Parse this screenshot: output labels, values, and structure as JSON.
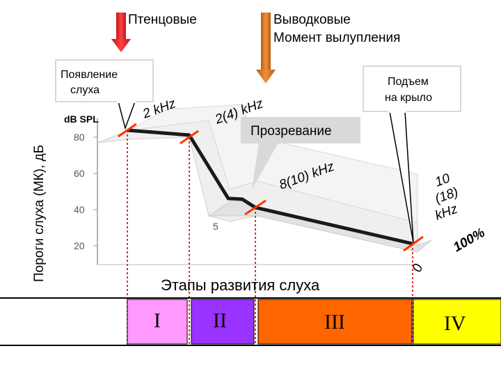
{
  "top_labels": {
    "altricial": "Птенцовые",
    "precocial_line1": "Выводковые",
    "precocial_line2": "Момент вылупления"
  },
  "y_axis_title": "Пороги слуха (МК), дБ",
  "y_axis_unit": "dB SPL",
  "y_ticks": [
    "80",
    "60",
    "40",
    "20"
  ],
  "x_tick_5": "5",
  "x_tick_0": "0",
  "x_end_label": "100%",
  "callouts": {
    "hearing_onset_line1": "Появление",
    "hearing_onset_line2": "слуха",
    "fledging_line1": "Подъем",
    "fledging_line2": "на крыло",
    "eye_opening": "Прозревание"
  },
  "frequency_labels": {
    "f1": "2 kHz",
    "f2": "2(4) kHz",
    "f3": "8(10) kHz",
    "f4_line1": "10",
    "f4_line2": "(18)",
    "f4_line3": "kHz"
  },
  "stages_title": "Этапы развития слуха",
  "stages": [
    {
      "label": "I",
      "color": "#ff99ff"
    },
    {
      "label": "II",
      "color": "#9933ff"
    },
    {
      "label": "III",
      "color": "#ff6600"
    },
    {
      "label": "IV",
      "color": "#ffff00"
    }
  ],
  "colors": {
    "threshold_line": "#1a1a1a",
    "markers": "#ff3300",
    "dotted_lines": "#e03030",
    "arrow_altricial": "#e02020",
    "arrow_precocial": "#e07a20"
  }
}
